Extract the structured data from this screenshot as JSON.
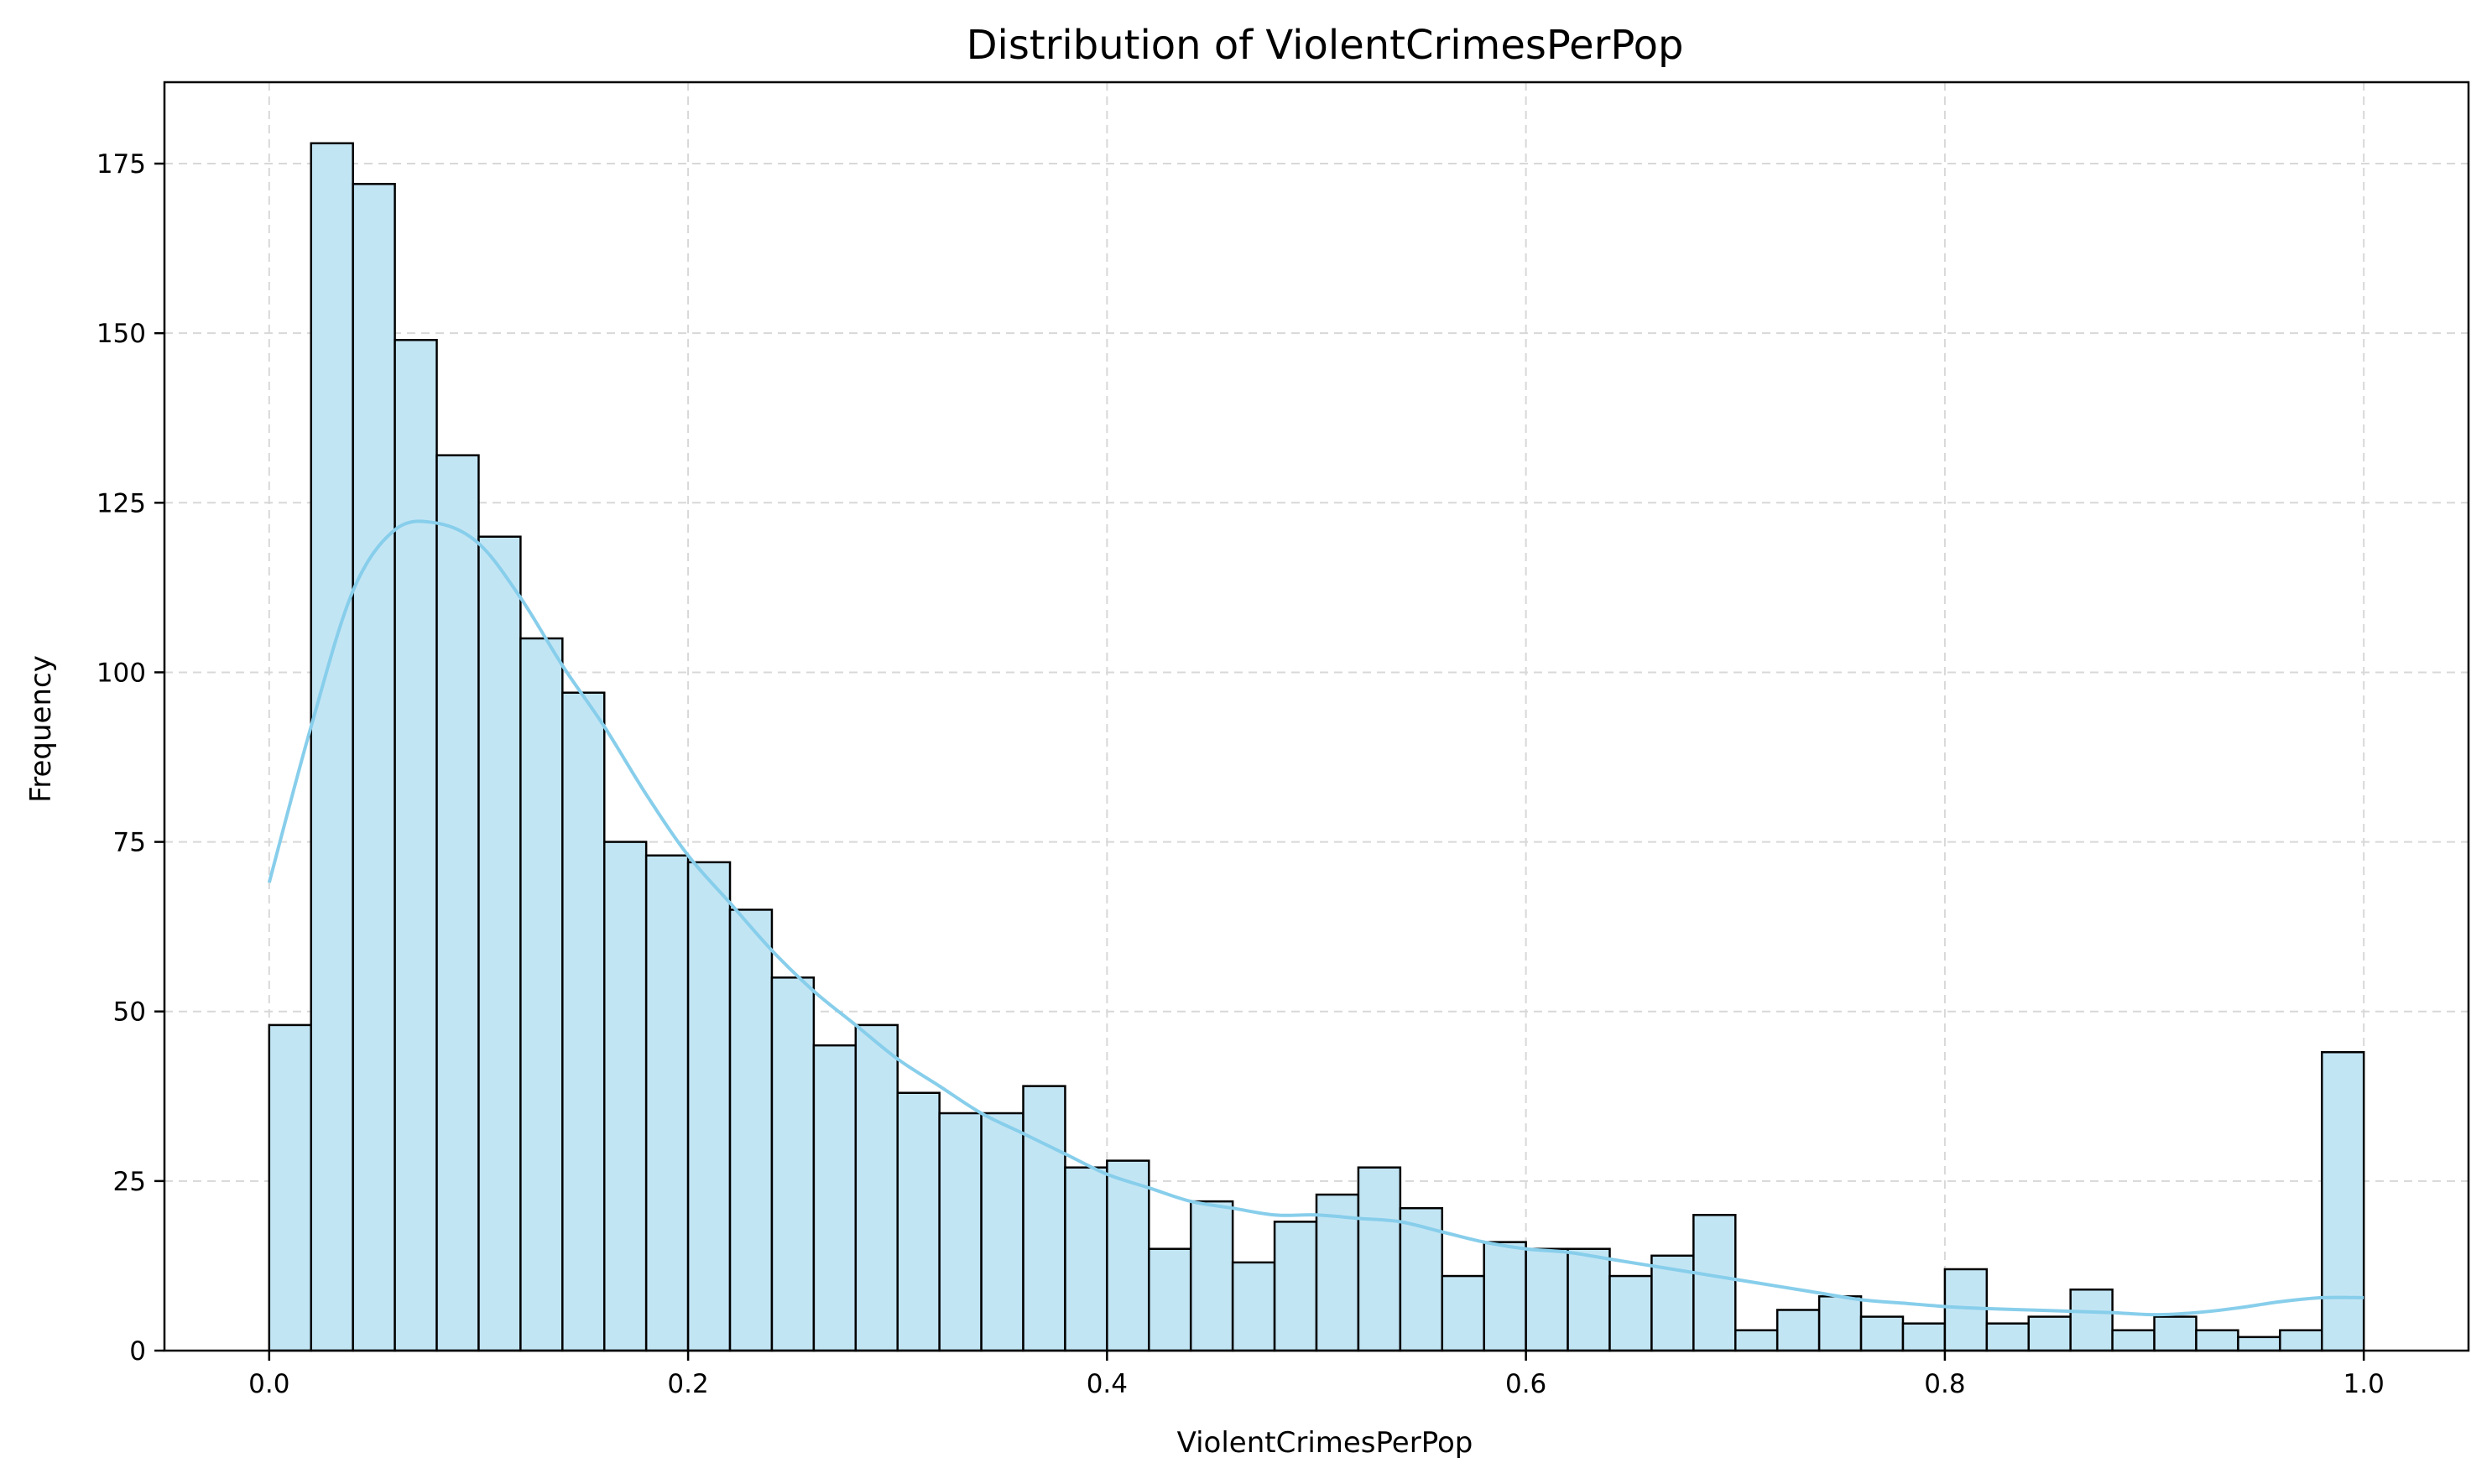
{
  "chart_data": {
    "type": "bar",
    "subtype": "histogram",
    "title": "Distribution of ViolentCrimesPerPop",
    "xlabel": "ViolentCrimesPerPop",
    "ylabel": "Frequency",
    "xlim": [
      -0.05,
      1.05
    ],
    "ylim": [
      0,
      187
    ],
    "xticks": [
      0.0,
      0.2,
      0.4,
      0.6,
      0.8,
      1.0
    ],
    "xtick_labels": [
      "0.0",
      "0.2",
      "0.4",
      "0.6",
      "0.8",
      "1.0"
    ],
    "yticks": [
      0,
      25,
      50,
      75,
      100,
      125,
      150,
      175
    ],
    "ytick_labels": [
      "0",
      "25",
      "50",
      "75",
      "100",
      "125",
      "150",
      "175"
    ],
    "grid": true,
    "bin_edges_start": 0.0,
    "bin_width": 0.02,
    "counts": [
      48,
      178,
      172,
      149,
      132,
      120,
      105,
      97,
      75,
      73,
      72,
      65,
      55,
      45,
      48,
      38,
      35,
      35,
      39,
      27,
      28,
      15,
      22,
      13,
      19,
      23,
      27,
      21,
      11,
      16,
      15,
      15,
      11,
      14,
      20,
      3,
      6,
      8,
      5,
      4,
      12,
      4,
      5,
      9,
      3,
      5,
      3,
      2,
      3,
      44
    ],
    "kde": {
      "x": [
        0.0,
        0.02,
        0.04,
        0.06,
        0.08,
        0.1,
        0.12,
        0.14,
        0.16,
        0.18,
        0.2,
        0.22,
        0.24,
        0.26,
        0.28,
        0.3,
        0.32,
        0.34,
        0.36,
        0.38,
        0.4,
        0.42,
        0.44,
        0.46,
        0.48,
        0.5,
        0.52,
        0.54,
        0.56,
        0.58,
        0.6,
        0.62,
        0.64,
        0.66,
        0.68,
        0.7,
        0.72,
        0.74,
        0.76,
        0.78,
        0.8,
        0.82,
        0.84,
        0.86,
        0.88,
        0.9,
        0.92,
        0.94,
        0.96,
        0.98,
        1.0
      ],
      "y": [
        69,
        92,
        112,
        121,
        122,
        119,
        111,
        101,
        92,
        82,
        73,
        66,
        59,
        53,
        48,
        43,
        39,
        35,
        32,
        29,
        26,
        24,
        22,
        21,
        20,
        20,
        19.5,
        19,
        17.5,
        16,
        15,
        14.5,
        13.5,
        12.5,
        11.5,
        10.5,
        9.5,
        8.5,
        7.5,
        7,
        6.5,
        6.2,
        6,
        5.8,
        5.6,
        5.3,
        5.6,
        6.3,
        7.2,
        7.8,
        7.8
      ]
    },
    "colors": {
      "bar_fill": "#c2e5f4",
      "bar_edge": "#000000",
      "kde_line": "#87ceeb",
      "grid": "#d8d8d8"
    }
  }
}
